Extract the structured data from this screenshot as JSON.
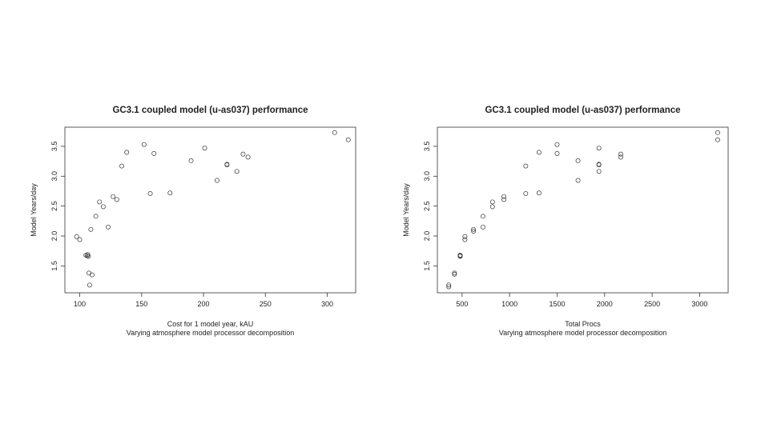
{
  "chart_data": [
    {
      "type": "scatter",
      "title": "GC3.1 coupled model (u-as037) performance",
      "xlabel": "Cost for 1 model year, kAU",
      "subtitle": "Varying atmosphere model processor decomposition",
      "ylabel": "Model Years/day",
      "xlim": [
        88,
        323
      ],
      "ylim": [
        1.05,
        3.82
      ],
      "xticks": [
        "100",
        "150",
        "200",
        "250",
        "300"
      ],
      "yticks": [
        "1.5",
        "2.0",
        "2.5",
        "3.0",
        "3.5"
      ],
      "grid": false,
      "x": [
        97.5,
        100,
        105,
        106,
        106.5,
        107,
        107.5,
        108,
        109,
        110,
        113,
        116,
        119,
        123,
        127,
        130,
        134,
        138,
        152,
        157,
        160,
        173,
        190,
        201,
        211,
        219,
        219,
        227,
        232,
        236,
        306,
        317
      ],
      "y": [
        1.99,
        1.94,
        1.68,
        1.67,
        1.69,
        1.66,
        1.38,
        1.18,
        2.11,
        1.35,
        2.33,
        2.57,
        2.49,
        2.15,
        2.66,
        2.61,
        3.17,
        3.4,
        3.53,
        2.71,
        3.38,
        2.72,
        3.26,
        3.47,
        2.93,
        3.2,
        3.19,
        3.08,
        3.37,
        3.32,
        3.73,
        3.61
      ]
    },
    {
      "type": "scatter",
      "title": "GC3.1 coupled model (u-as037) performance",
      "xlabel": "Total Procs",
      "subtitle": "Varying atmosphere model processor decomposition",
      "ylabel": "Model Years/day",
      "xlim": [
        240,
        3300
      ],
      "ylim": [
        1.05,
        3.82
      ],
      "xticks": [
        "500",
        "1000",
        "1500",
        "2000",
        "2500",
        "3000"
      ],
      "yticks": [
        "1.5",
        "2.0",
        "2.5",
        "3.0",
        "3.5"
      ],
      "grid": false,
      "x": [
        360,
        360,
        420,
        420,
        480,
        480,
        480,
        530,
        530,
        620,
        620,
        720,
        720,
        820,
        820,
        940,
        940,
        1170,
        1170,
        1310,
        1310,
        1500,
        1500,
        1720,
        1720,
        1940,
        1940,
        1940,
        1940,
        2170,
        2170,
        3190,
        3190
      ],
      "y": [
        1.15,
        1.18,
        1.36,
        1.38,
        1.66,
        1.67,
        1.68,
        1.94,
        1.99,
        2.08,
        2.11,
        2.15,
        2.33,
        2.49,
        2.57,
        2.61,
        2.66,
        2.71,
        3.17,
        2.72,
        3.4,
        3.38,
        3.53,
        2.93,
        3.26,
        3.08,
        3.2,
        3.19,
        3.47,
        3.32,
        3.37,
        3.61,
        3.73
      ]
    }
  ]
}
